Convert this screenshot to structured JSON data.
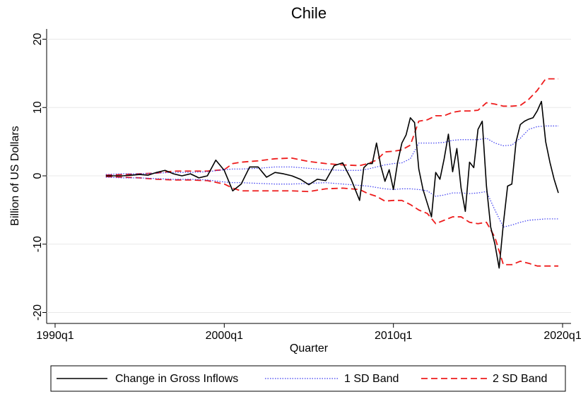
{
  "chart_data": {
    "type": "line",
    "title": "Chile",
    "x_label": "Quarter",
    "y_label": "Billion of US Dollars",
    "xlim": [
      1989.5,
      2020.5
    ],
    "xticks": [
      {
        "value": 1990,
        "label": "1990q1"
      },
      {
        "value": 2000,
        "label": "2000q1"
      },
      {
        "value": 2010,
        "label": "2010q1"
      },
      {
        "value": 2020,
        "label": "2020q1"
      }
    ],
    "ylim": [
      -21.5,
      21.5
    ],
    "yticks": [
      -20,
      -10,
      0,
      10,
      20
    ],
    "grid": true,
    "legend": "bottom",
    "series": [
      {
        "name": "Change in Gross Inflows",
        "color": "#000000",
        "style": "solid",
        "x": [
          1993,
          1993.5,
          1994,
          1994.5,
          1995,
          1995.5,
          1996,
          1996.5,
          1997,
          1997.5,
          1998,
          1998.5,
          1999,
          1999.5,
          2000,
          2000.5,
          2001,
          2001.5,
          2002,
          2002.5,
          2003,
          2003.5,
          2004,
          2004.5,
          2005,
          2005.5,
          2006,
          2006.5,
          2007,
          2007.5,
          2008,
          2008.25,
          2008.5,
          2008.75,
          2009,
          2009.25,
          2009.5,
          2009.75,
          2010,
          2010.25,
          2010.5,
          2010.75,
          2011,
          2011.25,
          2011.5,
          2011.75,
          2012,
          2012.25,
          2012.5,
          2012.75,
          2013,
          2013.25,
          2013.5,
          2013.75,
          2014,
          2014.25,
          2014.5,
          2014.75,
          2015,
          2015.25,
          2015.5,
          2015.75,
          2016,
          2016.25,
          2016.5,
          2016.75,
          2017,
          2017.25,
          2017.5,
          2017.75,
          2018,
          2018.25,
          2018.5,
          2018.75,
          2019,
          2019.25,
          2019.5,
          2019.75
        ],
        "values": [
          0,
          0,
          0,
          0.1,
          0.2,
          0.1,
          0.5,
          0.8,
          0.3,
          0,
          0.3,
          -0.3,
          0,
          2.3,
          0.8,
          -2.2,
          -1.2,
          1.3,
          1.3,
          -0.2,
          0.5,
          0.3,
          0,
          -0.5,
          -1.3,
          -0.5,
          -0.7,
          1.5,
          1.9,
          -0.5,
          -3.6,
          1.2,
          1.8,
          1.8,
          4.8,
          1.5,
          -0.8,
          0.9,
          -2.0,
          2.0,
          4.8,
          6.0,
          8.5,
          7.8,
          1.0,
          -2.0,
          -4.0,
          -6.0,
          0.5,
          -0.5,
          2.5,
          6.1,
          0.6,
          4.0,
          -1.8,
          -5.2,
          2.0,
          1.2,
          6.8,
          8.0,
          -1.5,
          -7.5,
          -10.0,
          -13.5,
          -7,
          -1.5,
          -1.2,
          5,
          7.5,
          8.0,
          8.3,
          8.5,
          9.5,
          10.9,
          5,
          2,
          -0.5,
          -2.5
        ]
      },
      {
        "name": "1 SD Band",
        "color": "#3a3af0",
        "style": "dotted",
        "x": [
          1993,
          1994,
          1995,
          1996,
          1997,
          1998,
          1999,
          2000,
          2000.5,
          2001,
          2002,
          2003,
          2004,
          2005,
          2006,
          2007,
          2008,
          2008.5,
          2009,
          2009.5,
          2010,
          2010.5,
          2011,
          2011.5,
          2012,
          2012.5,
          2013,
          2013.5,
          2014,
          2014.5,
          2015,
          2015.5,
          2016,
          2016.5,
          2017,
          2017.5,
          2018,
          2018.5,
          2019,
          2019.75
        ],
        "upper": [
          0.2,
          0.3,
          0.3,
          0.4,
          0.5,
          0.5,
          0.6,
          0.9,
          1.0,
          1.0,
          1.1,
          1.3,
          1.3,
          1.1,
          0.9,
          0.8,
          0.8,
          1.0,
          1.3,
          1.6,
          1.8,
          1.9,
          2.5,
          4.8,
          4.8,
          4.8,
          4.9,
          5.2,
          5.3,
          5.3,
          5.3,
          5.5,
          4.8,
          4.4,
          4.5,
          5.5,
          6.8,
          7.2,
          7.3,
          7.3
        ],
        "lower": [
          -0.2,
          -0.3,
          -0.3,
          -0.4,
          -0.5,
          -0.5,
          -0.6,
          -0.9,
          -1.0,
          -1.0,
          -1.1,
          -1.2,
          -1.2,
          -1.1,
          -1.0,
          -1.2,
          -1.4,
          -1.5,
          -1.7,
          -1.9,
          -2.0,
          -1.9,
          -1.9,
          -2.0,
          -2.2,
          -3.0,
          -2.8,
          -2.5,
          -2.5,
          -2.6,
          -2.5,
          -2.3,
          -5.0,
          -7.5,
          -7.2,
          -6.8,
          -6.5,
          -6.4,
          -6.3,
          -6.3
        ]
      },
      {
        "name": "2 SD Band",
        "color": "#ee1c1c",
        "style": "dashed",
        "x": [
          1993,
          1994,
          1995,
          1996,
          1997,
          1998,
          1999,
          2000,
          2000.5,
          2001,
          2002,
          2003,
          2004,
          2005,
          2006,
          2007,
          2008,
          2008.5,
          2009,
          2009.5,
          2010,
          2010.5,
          2011,
          2011.5,
          2012,
          2012.5,
          2013,
          2013.5,
          2014,
          2014.5,
          2015,
          2015.5,
          2016,
          2016.5,
          2017,
          2017.5,
          2018,
          2018.5,
          2019,
          2019.75
        ],
        "upper": [
          0.1,
          0.2,
          0.3,
          0.4,
          0.7,
          0.7,
          0.7,
          0.9,
          1.8,
          2.0,
          2.2,
          2.5,
          2.6,
          2.1,
          1.8,
          1.6,
          1.5,
          1.8,
          2.3,
          3.5,
          3.6,
          3.8,
          4.5,
          8.0,
          8.2,
          8.8,
          8.8,
          9.3,
          9.5,
          9.5,
          9.6,
          10.7,
          10.5,
          10.2,
          10.2,
          10.3,
          11.2,
          12.5,
          14.2,
          14.2
        ],
        "lower": [
          -0.1,
          -0.2,
          -0.3,
          -0.5,
          -0.6,
          -0.6,
          -0.7,
          -1.2,
          -1.8,
          -2.2,
          -2.2,
          -2.2,
          -2.2,
          -2.3,
          -1.9,
          -1.8,
          -2.0,
          -2.6,
          -3.0,
          -3.7,
          -3.6,
          -3.6,
          -4.2,
          -5.0,
          -5.5,
          -7.0,
          -6.5,
          -6.0,
          -6.0,
          -6.8,
          -7.0,
          -6.8,
          -9.0,
          -13.0,
          -13.0,
          -12.5,
          -12.8,
          -13.2,
          -13.2,
          -13.2
        ]
      }
    ]
  }
}
